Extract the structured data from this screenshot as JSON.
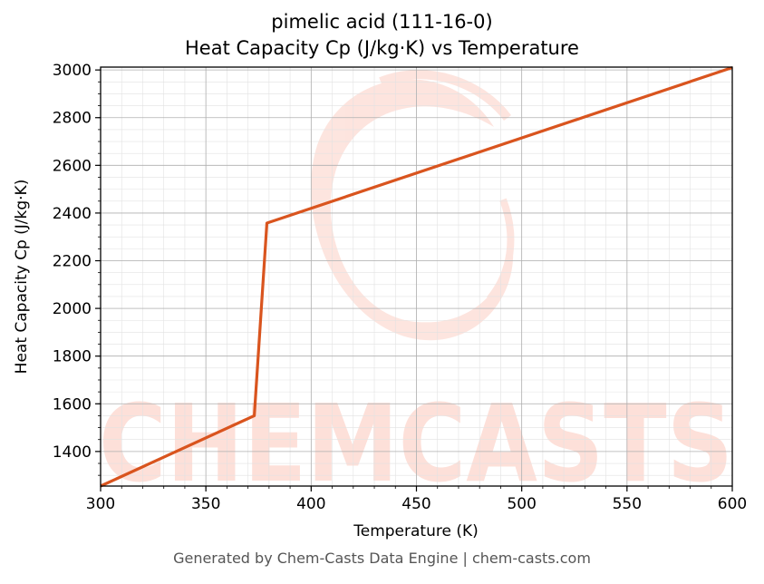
{
  "chart_data": {
    "type": "line",
    "title": "pimelic acid (111-16-0)",
    "subtitle": "Heat Capacity Cp (J/kg·K) vs Temperature",
    "xlabel": "Temperature (K)",
    "ylabel": "Heat Capacity Cp (J/kg·K)",
    "xlim": [
      300,
      600
    ],
    "ylim": [
      1255,
      3012
    ],
    "xticks": [
      300,
      350,
      400,
      450,
      500,
      550,
      600
    ],
    "yticks": [
      1400,
      1600,
      1800,
      2000,
      2200,
      2400,
      2600,
      2800,
      3000
    ],
    "grid": true,
    "series": [
      {
        "color": "#d9541e",
        "x": [
          300,
          373,
          379,
          600
        ],
        "y": [
          1255,
          1550,
          2358,
          3010
        ]
      }
    ]
  },
  "watermark": "CHEMCASTS",
  "footer": "Generated by Chem-Casts Data Engine | chem-casts.com",
  "colors": {
    "line": "#d9541e",
    "watermark": "#fde0d9",
    "grid_major": "#b0b0b0",
    "grid_minor": "#e2e2e2"
  }
}
